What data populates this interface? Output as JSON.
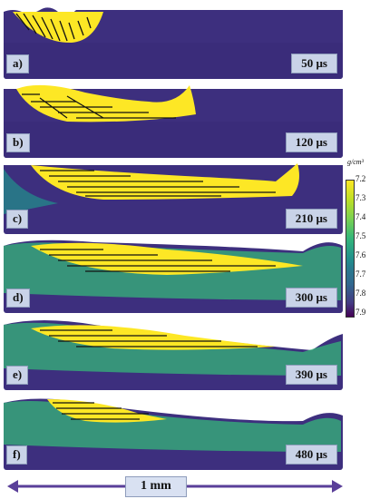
{
  "panels": [
    {
      "label": "a)",
      "time": "50 µs"
    },
    {
      "label": "b)",
      "time": "120 µs"
    },
    {
      "label": "c)",
      "time": "210 µs"
    },
    {
      "label": "d)",
      "time": "300 µs"
    },
    {
      "label": "e)",
      "time": "390 µs"
    },
    {
      "label": "f)",
      "time": "480 µs"
    }
  ],
  "colorbar": {
    "unit": "g/cm³",
    "ticks": [
      "7.2",
      "7.3",
      "7.4",
      "7.5",
      "7.6",
      "7.7",
      "7.8",
      "7.9"
    ],
    "colors": [
      "#fde725",
      "#7ad151",
      "#35b779",
      "#21918c",
      "#31688e",
      "#443a83",
      "#440154"
    ]
  },
  "scale_bar": {
    "label": "1 mm",
    "color": "#5a3f99"
  },
  "colors": {
    "substrate": "#3d2f7e",
    "substrate_dark": "#2f2168",
    "melt_pool": "#fde725",
    "background": "#ffffff"
  }
}
